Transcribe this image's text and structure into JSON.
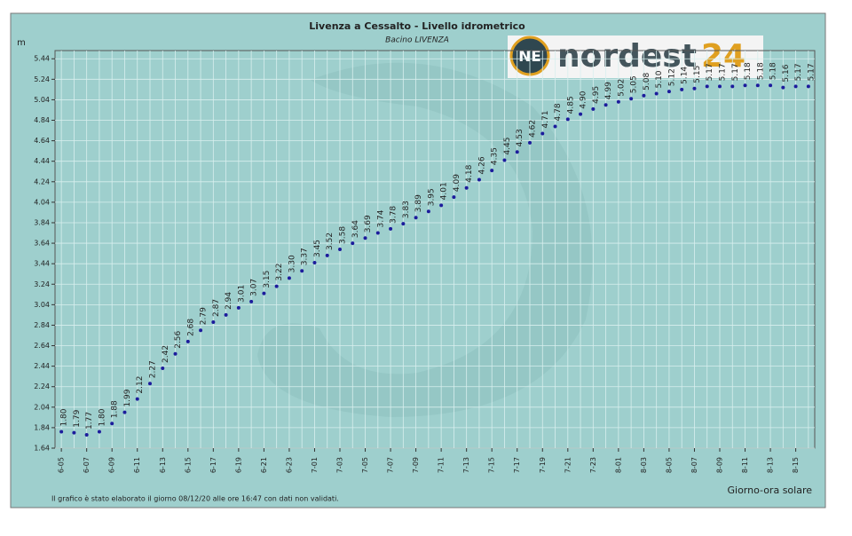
{
  "chart_data": {
    "type": "line",
    "title": "Livenza a Cessalto - Livello idrometrico",
    "subtitle": "Bacino LIVENZA",
    "y_label": "m",
    "x_label": "Giorno-ora solare",
    "footnote": "Il grafico è stato elaborato il giorno 08/12/20 alle ore 16:47 con dati non validati.",
    "logo": {
      "badge": "NE",
      "text": "nordest",
      "number": "24"
    },
    "categories": [
      "6-05",
      null,
      "6-07",
      null,
      "6-09",
      null,
      "6-11",
      null,
      "6-13",
      null,
      "6-15",
      null,
      "6-17",
      null,
      "6-19",
      null,
      "6-21",
      null,
      "6-23",
      null,
      "7-01",
      null,
      "7-03",
      null,
      "7-05",
      null,
      "7-07",
      null,
      "7-09",
      null,
      "7-11",
      null,
      "7-13",
      null,
      "7-15",
      null,
      "7-17",
      null,
      "7-19",
      null,
      "7-21",
      null,
      "7-23",
      null,
      "8-01",
      null,
      "8-03",
      null,
      "8-05",
      null,
      "8-07",
      null,
      "8-09",
      null,
      "8-11",
      null,
      "8-13",
      null,
      "8-15",
      null
    ],
    "series": [
      {
        "name": "Livello",
        "color": "#1c1c9c",
        "values": [
          1.8,
          1.79,
          1.77,
          1.8,
          1.88,
          1.99,
          2.12,
          2.27,
          2.42,
          2.56,
          2.68,
          2.79,
          2.87,
          2.94,
          3.01,
          3.07,
          3.15,
          3.22,
          3.3,
          3.37,
          3.45,
          3.52,
          3.58,
          3.64,
          3.69,
          3.74,
          3.78,
          3.83,
          3.89,
          3.95,
          4.01,
          4.09,
          4.18,
          4.26,
          4.35,
          4.45,
          4.53,
          4.62,
          4.71,
          4.78,
          4.85,
          4.9,
          4.95,
          4.99,
          5.02,
          5.05,
          5.08,
          5.1,
          5.12,
          5.14,
          5.15,
          5.17,
          5.17,
          5.17,
          5.18,
          5.18,
          5.18,
          5.16,
          5.17,
          5.17
        ],
        "value_labels": [
          "1.80",
          "1.79",
          "1.77",
          "1.80",
          "1.88",
          "1.99",
          "2.12",
          "2.27",
          "2.42",
          "2.56",
          "2.68",
          "2.79",
          "2.87",
          "2.94",
          "3.01",
          "3.07",
          "3.15",
          "3.22",
          "3.30",
          "3.37",
          "3.45",
          "3.52",
          "3.58",
          "3.64",
          "3.69",
          "3.74",
          "3.78",
          "3.83",
          "3.89",
          "3.95",
          "4.01",
          "4.09",
          "4.18",
          "4.26",
          "4.35",
          "4.45",
          "4.53",
          "4.62",
          "4.71",
          "4.78",
          "4.85",
          "4.90",
          "4.95",
          "4.99",
          "5.02",
          "5.05",
          "5.08",
          "5.10",
          "5.12",
          "5.14",
          "5.15",
          "5.17",
          "5.17",
          "5.17",
          "5.18",
          "5.18",
          "5.18",
          "5.16",
          "5.17",
          "5.17"
        ]
      }
    ],
    "ylim": [
      1.64,
      5.52
    ],
    "yticks": [
      1.64,
      1.84,
      2.04,
      2.24,
      2.44,
      2.64,
      2.84,
      3.04,
      3.24,
      3.44,
      3.64,
      3.84,
      4.04,
      4.24,
      4.44,
      4.64,
      4.84,
      5.04,
      5.24,
      5.44
    ],
    "grid": true
  }
}
